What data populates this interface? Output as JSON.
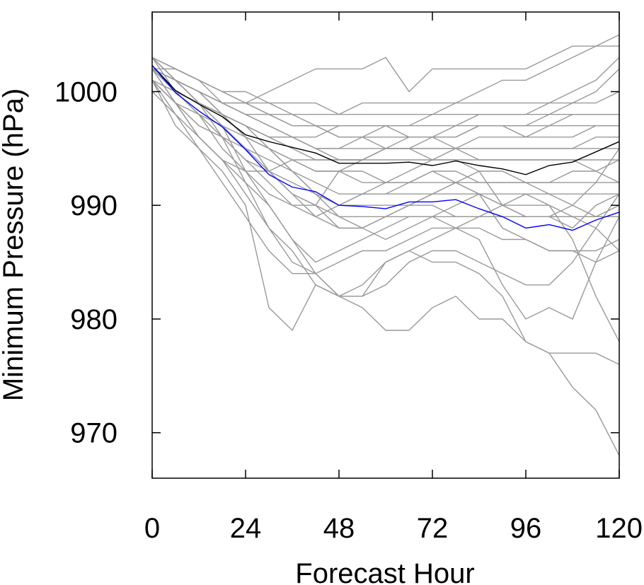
{
  "chart_data": {
    "type": "line",
    "title": "",
    "xlabel": "Forecast Hour",
    "ylabel": "Minimum Pressure (hPa)",
    "xlim": [
      0,
      120
    ],
    "ylim": [
      966,
      1007
    ],
    "xticks": [
      0,
      24,
      48,
      72,
      96,
      120
    ],
    "xtick_labels": [
      "0",
      "24",
      "48",
      "72",
      "96",
      "120"
    ],
    "yticks": [
      970,
      980,
      990,
      1000
    ],
    "ytick_labels": [
      "970",
      "980",
      "990",
      "1000"
    ],
    "grid": false,
    "legend": "none",
    "x": [
      0,
      6,
      12,
      18,
      24,
      30,
      36,
      42,
      48,
      54,
      60,
      66,
      72,
      78,
      84,
      90,
      96,
      102,
      108,
      114,
      120
    ],
    "highlight_series": [
      {
        "color": "#000000",
        "values": [
          1002.3,
          1000.1,
          998.9,
          997.8,
          996.2,
          995.6,
          995.1,
          994.6,
          993.7,
          993.7,
          993.7,
          993.8,
          993.5,
          993.9,
          993.5,
          993.2,
          992.7,
          993.5,
          993.8,
          994.7,
          995.6
        ]
      },
      {
        "color": "#0000ff",
        "values": [
          1002.3,
          999.9,
          998.3,
          996.9,
          994.9,
          992.7,
          991.6,
          991.2,
          990.0,
          989.9,
          989.7,
          990.3,
          990.3,
          990.5,
          989.7,
          989.0,
          988.0,
          988.3,
          987.8,
          988.7,
          989.4
        ]
      }
    ],
    "ensemble_color": "#999999",
    "ensemble_series": [
      [
        1003,
        1001,
        999,
        996,
        992,
        988,
        986,
        983,
        982,
        983,
        985,
        986,
        987,
        988,
        989,
        990,
        991,
        990,
        987,
        982,
        978
      ],
      [
        1002,
        999,
        996,
        994,
        991,
        988,
        985,
        984,
        982,
        981,
        979,
        979,
        981,
        982,
        980,
        980,
        978,
        977,
        974,
        972,
        968
      ],
      [
        1001,
        997,
        995,
        993,
        990,
        981,
        979,
        983,
        982,
        982,
        985,
        986,
        985,
        985,
        984,
        982,
        978,
        977,
        977,
        977,
        976
      ],
      [
        1003,
        1000,
        998,
        997,
        993,
        990,
        987,
        985,
        986,
        987,
        988,
        989,
        989,
        988,
        987,
        983,
        980,
        981,
        980,
        985,
        989
      ],
      [
        1002,
        1001,
        999,
        998,
        996,
        993,
        991,
        990,
        988,
        988,
        987,
        988,
        989,
        990,
        991,
        988,
        987,
        986,
        986,
        985,
        986
      ],
      [
        1001,
        999,
        998,
        996,
        995,
        994,
        993,
        991,
        990,
        991,
        992,
        993,
        994,
        994,
        993,
        990,
        989,
        989,
        988,
        990,
        991
      ],
      [
        1003,
        1002,
        1001,
        999,
        998,
        997,
        996,
        995,
        995,
        996,
        997,
        997,
        998,
        999,
        1000,
        1001,
        1001,
        1002,
        1003,
        1004,
        1005
      ],
      [
        1002,
        1002,
        1001,
        1000,
        999,
        1000,
        1001,
        1002,
        1002,
        1002,
        1003,
        1000,
        1002,
        1002,
        1002,
        1002,
        1002,
        1003,
        1004,
        1004,
        1004
      ],
      [
        1002,
        1001,
        1000,
        998,
        996,
        995,
        994,
        993,
        993,
        994,
        995,
        995,
        996,
        996,
        997,
        997,
        997,
        998,
        999,
        1000,
        1002
      ],
      [
        1001,
        1000,
        998,
        997,
        995,
        993,
        991,
        989,
        988,
        988,
        989,
        990,
        991,
        992,
        991,
        990,
        989,
        989,
        990,
        992,
        995
      ],
      [
        1002,
        1000,
        999,
        998,
        997,
        996,
        996,
        995,
        994,
        994,
        995,
        996,
        996,
        997,
        998,
        998,
        998,
        999,
        1000,
        1001,
        1003
      ],
      [
        1000,
        998,
        996,
        994,
        992,
        990,
        987,
        984,
        982,
        982,
        983,
        985,
        986,
        986,
        985,
        984,
        983,
        983,
        985,
        988,
        991
      ],
      [
        1003,
        1001,
        1000,
        998,
        997,
        995,
        993,
        991,
        989,
        988,
        989,
        990,
        991,
        992,
        993,
        993,
        992,
        991,
        990,
        989,
        990
      ],
      [
        1002,
        1001,
        1000,
        999,
        998,
        998,
        997,
        997,
        996,
        996,
        996,
        996,
        996,
        995,
        995,
        995,
        995,
        995,
        995,
        995,
        995
      ],
      [
        1002,
        1000,
        999,
        997,
        996,
        995,
        994,
        993,
        993,
        992,
        992,
        992,
        992,
        992,
        992,
        992,
        992,
        992,
        992,
        992,
        992
      ],
      [
        1001,
        1000,
        999,
        998,
        997,
        996,
        995,
        994,
        994,
        994,
        994,
        994,
        994,
        994,
        994,
        994,
        994,
        994,
        994,
        994,
        994
      ],
      [
        1002,
        1001,
        1000,
        999,
        999,
        998,
        997,
        997,
        997,
        997,
        997,
        997,
        997,
        997,
        997,
        997,
        997,
        997,
        997,
        997,
        997
      ],
      [
        1003,
        1002,
        1001,
        1000,
        999,
        999,
        998,
        998,
        998,
        998,
        998,
        998,
        998,
        998,
        998,
        998,
        998,
        998,
        998,
        998,
        998
      ],
      [
        1002,
        1001,
        999,
        997,
        995,
        993,
        991,
        990,
        989,
        989,
        989,
        989,
        989,
        989,
        989,
        989,
        989,
        989,
        989,
        989,
        989
      ],
      [
        1001,
        998,
        995,
        992,
        989,
        986,
        984,
        984,
        985,
        986,
        986,
        987,
        988,
        988,
        988,
        987,
        987,
        986,
        986,
        986,
        987
      ],
      [
        1002,
        1000,
        998,
        995,
        993,
        991,
        990,
        989,
        990,
        991,
        991,
        992,
        993,
        992,
        991,
        990,
        990,
        990,
        989,
        988,
        986
      ],
      [
        1002,
        1001,
        999,
        998,
        997,
        996,
        996,
        996,
        997,
        997,
        997,
        996,
        996,
        996,
        997,
        997,
        996,
        997,
        998,
        998,
        998
      ],
      [
        1003,
        1001,
        1000,
        999,
        999,
        998,
        998,
        997,
        996,
        996,
        995,
        995,
        995,
        995,
        995,
        995,
        995,
        995,
        995,
        996,
        996
      ],
      [
        1002,
        1000,
        999,
        998,
        996,
        995,
        993,
        992,
        991,
        991,
        991,
        991,
        991,
        991,
        991,
        991,
        991,
        991,
        991,
        991,
        991
      ],
      [
        1001,
        999,
        997,
        996,
        994,
        993,
        992,
        991,
        990,
        990,
        990,
        990,
        990,
        989,
        989,
        989,
        989,
        989,
        989,
        989,
        989
      ],
      [
        1002,
        1001,
        1000,
        999,
        998,
        997,
        996,
        995,
        995,
        995,
        995,
        995,
        995,
        995,
        996,
        996,
        996,
        996,
        996,
        997,
        997
      ],
      [
        1003,
        1002,
        1001,
        1000,
        1000,
        999,
        999,
        999,
        998,
        999,
        999,
        999,
        999,
        999,
        999,
        999,
        999,
        999,
        999,
        999,
        1000
      ],
      [
        1001,
        999,
        997,
        996,
        994,
        992,
        990,
        990,
        993,
        993,
        992,
        992,
        993,
        993,
        992,
        992,
        992,
        992,
        993,
        993,
        994
      ],
      [
        1002,
        999,
        996,
        994,
        993,
        993,
        994,
        994,
        994,
        994,
        995,
        995,
        994,
        995,
        994,
        994,
        994,
        994,
        994,
        993,
        992
      ]
    ]
  }
}
